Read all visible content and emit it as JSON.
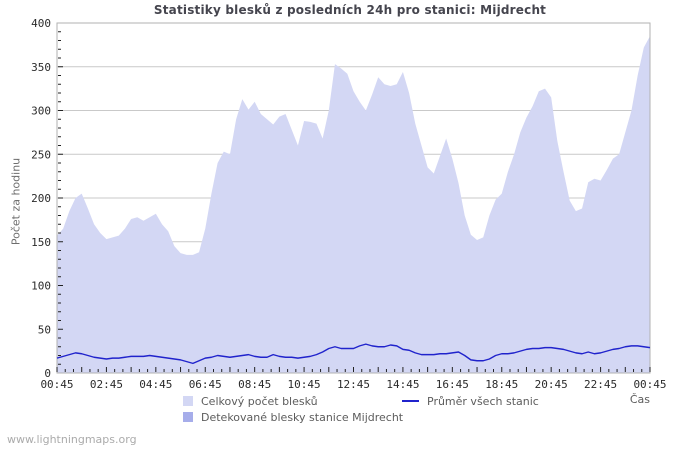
{
  "header": {
    "title": "Statistiky blesků z posledních 24h pro stanici: Mijdrecht"
  },
  "footer": {
    "watermark": "www.lightningmaps.org"
  },
  "legend": {
    "total_label": "Celkový počet blesků",
    "station_label": "Detekované blesky stanice Mijdrecht",
    "average_label": "Průměr všech stanic"
  },
  "colors": {
    "area_total": "#d3d7f4",
    "area_station": "#a6adea",
    "average_line": "#2023cc",
    "grid": "#c9c9c9",
    "plot_border": "#b2b2b2",
    "tick": "#222222",
    "tick_label": "#2b2b2b"
  },
  "chart_data": {
    "type": "area",
    "title": "Statistiky blesků z posledních 24h pro stanici: Mijdrecht",
    "xlabel": "Čas",
    "ylabel": "Počet za hodinu",
    "ylim": [
      0,
      400
    ],
    "y_tick_step": 50,
    "y_minor_tick_step": 10,
    "x_start": "00:45",
    "x_interval_minutes": 15,
    "x_total_minutes": 1440,
    "x_minor_tick_minutes": 20,
    "x_major_tick_minutes": 60,
    "x_tick_labels": [
      "00:45",
      "02:45",
      "04:45",
      "06:45",
      "08:45",
      "10:45",
      "12:45",
      "14:45",
      "16:45",
      "18:45",
      "20:45",
      "22:45",
      "00:45"
    ],
    "grid": "horizontal",
    "legend_position": "bottom",
    "series": [
      {
        "name": "Celkový počet blesků",
        "type": "area",
        "color": "#d3d7f4",
        "values": [
          157,
          165,
          185,
          200,
          205,
          188,
          170,
          160,
          153,
          155,
          157,
          165,
          176,
          178,
          174,
          178,
          182,
          170,
          162,
          145,
          137,
          135,
          135,
          138,
          165,
          205,
          240,
          253,
          250,
          290,
          313,
          301,
          310,
          296,
          290,
          284,
          293,
          296,
          278,
          260,
          288,
          287,
          285,
          268,
          300,
          353,
          348,
          342,
          322,
          310,
          300,
          318,
          338,
          330,
          328,
          330,
          344,
          320,
          285,
          260,
          235,
          228,
          248,
          268,
          245,
          217,
          180,
          158,
          152,
          155,
          180,
          198,
          205,
          230,
          250,
          275,
          292,
          305,
          322,
          325,
          315,
          265,
          230,
          197,
          185,
          188,
          218,
          222,
          220,
          232,
          245,
          250,
          275,
          300,
          340,
          372,
          385
        ]
      },
      {
        "name": "Detekované blesky stanice Mijdrecht",
        "type": "area",
        "color": "#a6adea",
        "constant_value": 0
      },
      {
        "name": "Průměr všech stanic",
        "type": "line",
        "color": "#2023cc",
        "values": [
          17,
          19,
          21,
          23,
          22,
          20,
          18,
          17,
          16,
          17,
          17,
          18,
          19,
          19,
          19,
          20,
          19,
          18,
          17,
          16,
          15,
          13,
          11,
          14,
          17,
          18,
          20,
          19,
          18,
          19,
          20,
          21,
          19,
          18,
          18,
          21,
          19,
          18,
          18,
          17,
          18,
          19,
          21,
          24,
          28,
          30,
          28,
          28,
          28,
          31,
          33,
          31,
          30,
          30,
          32,
          31,
          27,
          26,
          23,
          21,
          21,
          21,
          22,
          22,
          23,
          24,
          20,
          15,
          14,
          14,
          16,
          20,
          22,
          22,
          23,
          25,
          27,
          28,
          28,
          29,
          29,
          28,
          27,
          25,
          23,
          22,
          24,
          22,
          23,
          25,
          27,
          28,
          30,
          31,
          31,
          30,
          29
        ]
      }
    ]
  }
}
